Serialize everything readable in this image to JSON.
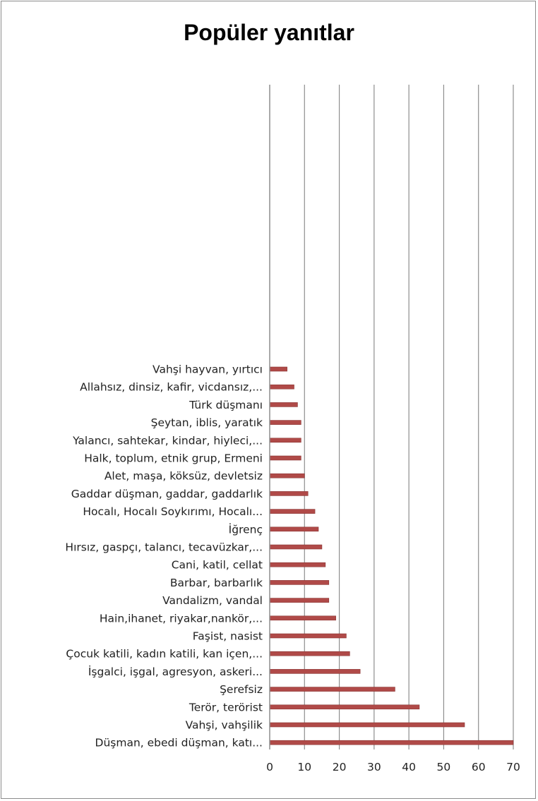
{
  "chart_data": {
    "type": "bar",
    "orientation": "horizontal",
    "title": "Popüler yanıtlar",
    "xlim": [
      0,
      70
    ],
    "xticks": [
      0,
      10,
      20,
      30,
      40,
      50,
      60,
      70
    ],
    "grid": "vertical",
    "legend": "none",
    "bar_color": "#b04a48",
    "categories": [
      "Vahşi hayvan, yırtıcı",
      "Allahsız, dinsiz, kafir, vicdansız,...",
      "Türk düşmanı",
      "Şeytan, iblis, yaratık",
      "Yalancı, sahtekar, kindar, hiyleci,...",
      "Halk, toplum, etnik grup, Ermeni",
      "Alet, maşa, köksüz, devletsiz",
      "Gaddar düşman, gaddar, gaddarlık",
      "Hocalı, Hocalı Soykırımı, Hocalı...",
      "İğrenç",
      "Hırsız, gaspçı, talancı, tecavüzkar,...",
      "Cani, katil, cellat",
      "Barbar, barbarlık",
      "Vandalizm, vandal",
      "Hain,ihanet, riyakar,nankör,...",
      "Faşist, nasist",
      "Çocuk katili, kadın katili, kan içen,...",
      "İşgalci, işgal, agresyon, askeri...",
      "Şerefsiz",
      "Terör, terörist",
      "Vahşi, vahşilik",
      "Düşman, ebedi düşman, katı..."
    ],
    "values": [
      5,
      7,
      8,
      9,
      9,
      9,
      10,
      11,
      13,
      14,
      15,
      16,
      17,
      17,
      19,
      22,
      23,
      26,
      36,
      43,
      56,
      70
    ]
  }
}
